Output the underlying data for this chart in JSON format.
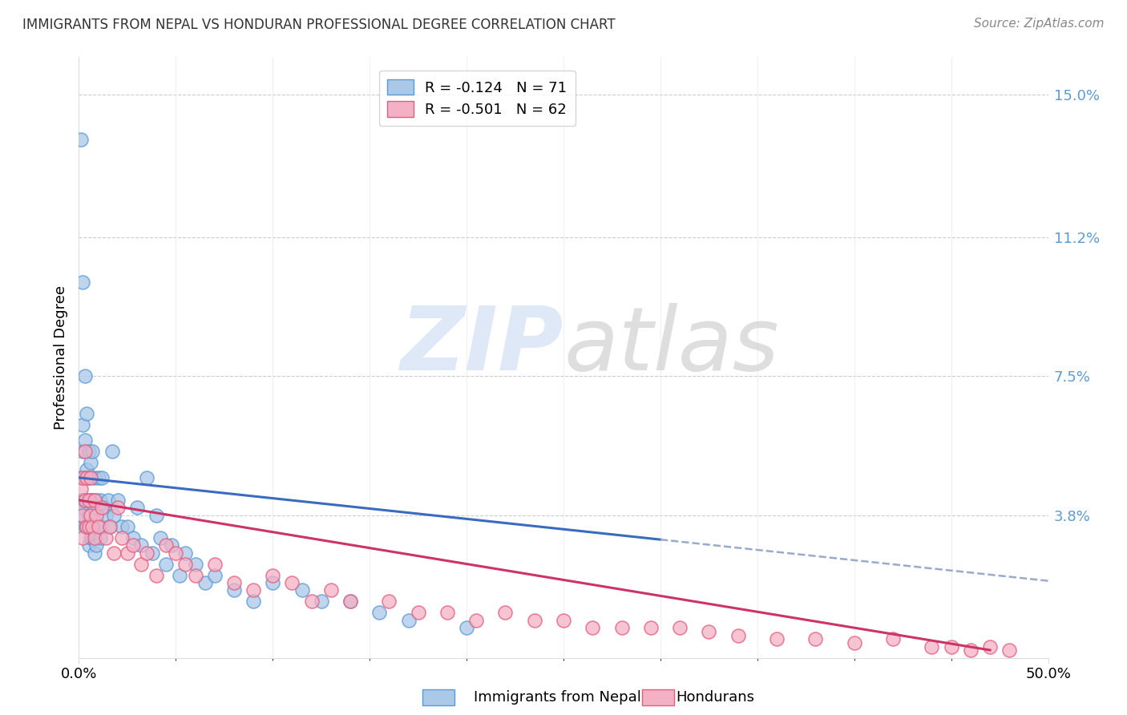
{
  "title": "IMMIGRANTS FROM NEPAL VS HONDURAN PROFESSIONAL DEGREE CORRELATION CHART",
  "source": "Source: ZipAtlas.com",
  "ylabel": "Professional Degree",
  "xlim": [
    0.0,
    0.5
  ],
  "ylim": [
    0.0,
    0.16
  ],
  "xtick_labels": [
    "0.0%",
    "50.0%"
  ],
  "xtick_positions": [
    0.0,
    0.5
  ],
  "ytick_labels": [
    "3.8%",
    "7.5%",
    "11.2%",
    "15.0%"
  ],
  "ytick_positions": [
    0.038,
    0.075,
    0.112,
    0.15
  ],
  "nepal_color": "#aac8e8",
  "nepal_edge_color": "#5b9bd5",
  "honduras_color": "#f4b0c4",
  "honduras_edge_color": "#e06080",
  "nepal_R": -0.124,
  "nepal_N": 71,
  "honduras_R": -0.501,
  "honduras_N": 62,
  "nepal_line_color": "#3a6bbf",
  "honduras_line_color": "#cc3366",
  "dashed_line_color": "#99aacc",
  "background_color": "#ffffff",
  "nepal_line_intercept": 0.048,
  "nepal_line_slope": -0.055,
  "honduras_line_intercept": 0.042,
  "honduras_line_slope": -0.085,
  "nepal_line_xend": 0.3,
  "honduras_line_xend": 0.47,
  "dashed_line_xstart": 0.3,
  "dashed_line_xend": 0.5,
  "nepal_scatter_x": [
    0.001,
    0.001,
    0.001,
    0.001,
    0.002,
    0.002,
    0.002,
    0.002,
    0.002,
    0.003,
    0.003,
    0.003,
    0.003,
    0.003,
    0.004,
    0.004,
    0.004,
    0.004,
    0.005,
    0.005,
    0.005,
    0.005,
    0.006,
    0.006,
    0.006,
    0.007,
    0.007,
    0.007,
    0.008,
    0.008,
    0.008,
    0.009,
    0.009,
    0.01,
    0.01,
    0.011,
    0.011,
    0.012,
    0.012,
    0.013,
    0.014,
    0.015,
    0.016,
    0.017,
    0.018,
    0.02,
    0.022,
    0.025,
    0.028,
    0.03,
    0.032,
    0.035,
    0.038,
    0.04,
    0.042,
    0.045,
    0.048,
    0.052,
    0.055,
    0.06,
    0.065,
    0.07,
    0.08,
    0.09,
    0.1,
    0.115,
    0.125,
    0.14,
    0.155,
    0.17,
    0.2
  ],
  "nepal_scatter_y": [
    0.138,
    0.048,
    0.042,
    0.038,
    0.1,
    0.062,
    0.055,
    0.048,
    0.04,
    0.075,
    0.058,
    0.048,
    0.042,
    0.035,
    0.065,
    0.05,
    0.042,
    0.035,
    0.055,
    0.048,
    0.038,
    0.03,
    0.052,
    0.042,
    0.032,
    0.055,
    0.042,
    0.032,
    0.048,
    0.04,
    0.028,
    0.042,
    0.03,
    0.048,
    0.035,
    0.042,
    0.032,
    0.048,
    0.035,
    0.04,
    0.038,
    0.042,
    0.035,
    0.055,
    0.038,
    0.042,
    0.035,
    0.035,
    0.032,
    0.04,
    0.03,
    0.048,
    0.028,
    0.038,
    0.032,
    0.025,
    0.03,
    0.022,
    0.028,
    0.025,
    0.02,
    0.022,
    0.018,
    0.015,
    0.02,
    0.018,
    0.015,
    0.015,
    0.012,
    0.01,
    0.008
  ],
  "honduras_scatter_x": [
    0.001,
    0.002,
    0.002,
    0.002,
    0.003,
    0.003,
    0.004,
    0.004,
    0.005,
    0.005,
    0.006,
    0.006,
    0.007,
    0.008,
    0.008,
    0.009,
    0.01,
    0.012,
    0.014,
    0.016,
    0.018,
    0.02,
    0.022,
    0.025,
    0.028,
    0.032,
    0.035,
    0.04,
    0.045,
    0.05,
    0.055,
    0.06,
    0.07,
    0.08,
    0.09,
    0.1,
    0.11,
    0.12,
    0.13,
    0.14,
    0.16,
    0.175,
    0.19,
    0.205,
    0.22,
    0.235,
    0.25,
    0.265,
    0.28,
    0.295,
    0.31,
    0.325,
    0.34,
    0.36,
    0.38,
    0.4,
    0.42,
    0.44,
    0.45,
    0.46,
    0.47,
    0.48
  ],
  "honduras_scatter_y": [
    0.045,
    0.048,
    0.038,
    0.032,
    0.055,
    0.042,
    0.048,
    0.035,
    0.042,
    0.035,
    0.048,
    0.038,
    0.035,
    0.042,
    0.032,
    0.038,
    0.035,
    0.04,
    0.032,
    0.035,
    0.028,
    0.04,
    0.032,
    0.028,
    0.03,
    0.025,
    0.028,
    0.022,
    0.03,
    0.028,
    0.025,
    0.022,
    0.025,
    0.02,
    0.018,
    0.022,
    0.02,
    0.015,
    0.018,
    0.015,
    0.015,
    0.012,
    0.012,
    0.01,
    0.012,
    0.01,
    0.01,
    0.008,
    0.008,
    0.008,
    0.008,
    0.007,
    0.006,
    0.005,
    0.005,
    0.004,
    0.005,
    0.003,
    0.003,
    0.002,
    0.003,
    0.002
  ]
}
